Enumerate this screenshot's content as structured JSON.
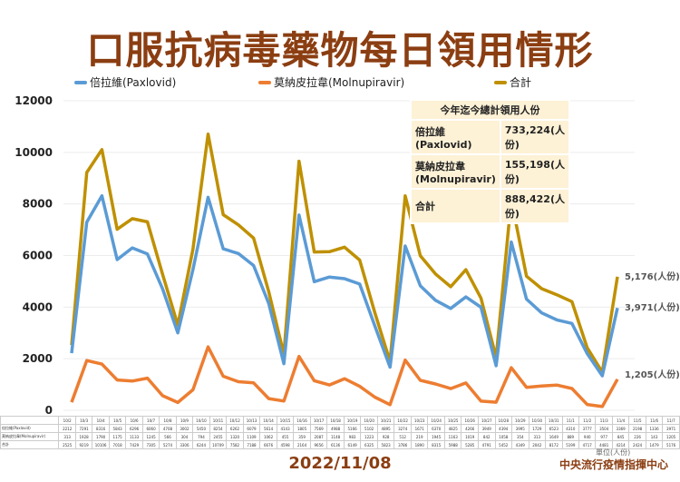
{
  "header": {
    "title": "口服抗病毒藥物每日領用情形"
  },
  "footer": {
    "date": "2022/11/08",
    "unit": "單位(人份)",
    "org": "中央流行疫情指揮中心"
  },
  "summary": {
    "title": "今年迄今總計領用人份",
    "rows": [
      {
        "label": "倍拉維(Paxlovid)",
        "value": "733,224(人份)"
      },
      {
        "label": "莫納皮拉韋\n(Molnupiravir)",
        "value": "155,198(人份)"
      },
      {
        "label": "合計",
        "value": "888,422(人份)"
      }
    ]
  },
  "chart_data": {
    "type": "line",
    "title": "口服抗病毒藥物每日領用情形",
    "xlabel": "",
    "ylabel": "",
    "ylim": [
      0,
      12000
    ],
    "yticks": [
      0,
      2000,
      4000,
      6000,
      8000,
      10000,
      12000
    ],
    "grid": true,
    "legend": "top",
    "categories": [
      "10/2",
      "10/3",
      "10/4",
      "10/5",
      "10/6",
      "10/7",
      "10/8",
      "10/9",
      "10/10",
      "10/11",
      "10/12",
      "10/13",
      "10/14",
      "10/15",
      "10/16",
      "10/17",
      "10/18",
      "10/19",
      "10/20",
      "10/21",
      "10/22",
      "10/23",
      "10/24",
      "10/25",
      "10/26",
      "10/27",
      "10/28",
      "10/29",
      "10/30",
      "10/31",
      "11/1",
      "11/2",
      "11/3",
      "11/4",
      "11/5",
      "11/6",
      "11/7"
    ],
    "series": [
      {
        "name": "倍拉維(Paxlovid)",
        "color": "#5B9BD5",
        "values": [
          2212,
          7291,
          8316,
          5843,
          6296,
          6060,
          4708,
          3002,
          5450,
          8254,
          6262,
          6079,
          5614,
          4143,
          1805,
          7569,
          4988,
          5166,
          5102,
          4895,
          3274,
          1671,
          6370,
          4825,
          4266,
          3949,
          4394,
          3995,
          1729,
          6523,
          4310,
          3777,
          3504,
          3369,
          2198,
          1336,
          3971
        ]
      },
      {
        "name": "莫納皮拉韋(Molnupiravir)",
        "color": "#ED7D31",
        "values": [
          313,
          1928,
          1790,
          1175,
          1133,
          1245,
          566,
          304,
          794,
          2455,
          1320,
          1109,
          1062,
          455,
          359,
          2087,
          1148,
          983,
          1223,
          928,
          512,
          219,
          1945,
          1163,
          1019,
          842,
          1058,
          354,
          313,
          1649,
          889,
          940,
          977,
          845,
          226,
          143,
          1205
        ]
      },
      {
        "name": "合計",
        "color": "#BF9000",
        "values": [
          2525,
          9219,
          10106,
          7018,
          7429,
          7305,
          5274,
          3306,
          6244,
          10709,
          7582,
          7188,
          6676,
          4598,
          2164,
          9656,
          6136,
          6149,
          6325,
          5823,
          3786,
          1890,
          8315,
          5988,
          5285,
          4791,
          5452,
          4349,
          2042,
          8172,
          5199,
          4717,
          4481,
          4214,
          2424,
          1479,
          5176
        ]
      }
    ],
    "end_labels": [
      "3,971(人份)",
      "1,205(人份)",
      "5,176(人份)"
    ],
    "table_row_labels": [
      "倍拉維(Paxlovid)",
      "莫納皮拉韋(Molnupiravir)",
      "合計"
    ]
  }
}
